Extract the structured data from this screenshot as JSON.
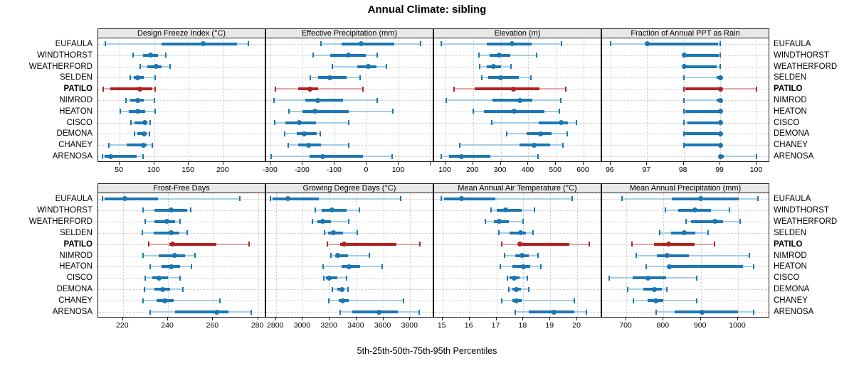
{
  "title": "Annual Climate: sibling",
  "caption": "5th-25th-50th-75th-95th Percentiles",
  "colors": {
    "blue": "#1b77b4",
    "blue_light": "#a5cde3",
    "red": "#b22222",
    "red_light": "#dfaaa4",
    "strip_bg": "#e8e8e8",
    "grid": "#c8c8c8",
    "border": "#1a1a1a"
  },
  "chart_data": {
    "type": "dotplot",
    "title": "Annual Climate: sibling",
    "xlabel": "5th-25th-50th-75th-95th Percentiles",
    "percentiles": [
      5,
      25,
      50,
      75,
      95
    ],
    "legend_position": "none",
    "grid": "dotted",
    "sites": [
      "EUFAULA",
      "WINDTHORST",
      "WEATHERFORD",
      "SELDEN",
      "PATILO",
      "NIMROD",
      "HEATON",
      "CISCO",
      "DEMONA",
      "CHANEY",
      "ARENOSA"
    ],
    "highlight_site": "PATILO",
    "panels": [
      {
        "title": "Design Freeze Index (°C)",
        "xlim": [
          19,
          262
        ],
        "ticks": [
          50,
          100,
          150,
          200
        ],
        "ticks_unlabeled": [],
        "values": [
          [
            29,
            111,
            171,
            220,
            236
          ],
          [
            69,
            84,
            95,
            105,
            117
          ],
          [
            80,
            90,
            103,
            111,
            123
          ],
          [
            65,
            70,
            76,
            85,
            101
          ],
          [
            26,
            36,
            79,
            97,
            101
          ],
          [
            59,
            65,
            76,
            85,
            100
          ],
          [
            51,
            63,
            76,
            87,
            101
          ],
          [
            66,
            72,
            86,
            90,
            94
          ],
          [
            72,
            76,
            85,
            89,
            93
          ],
          [
            34,
            60,
            84,
            89,
            97
          ],
          [
            25,
            28,
            37,
            75,
            84
          ]
        ]
      },
      {
        "title": "Effective Precipitation (mm)",
        "xlim": [
          -314,
          210
        ],
        "ticks": [
          -300,
          -200,
          -100,
          0,
          100
        ],
        "ticks_unlabeled": [
          200
        ],
        "values": [
          [
            -144,
            -78,
            -18,
            85,
            168
          ],
          [
            -168,
            -115,
            -57,
            -4,
            33
          ],
          [
            -107,
            -30,
            5,
            30,
            62
          ],
          [
            -176,
            -152,
            -116,
            -63,
            -22
          ],
          [
            -285,
            -215,
            -178,
            -152,
            -12
          ],
          [
            -289,
            -192,
            -152,
            -74,
            32
          ],
          [
            -242,
            -200,
            -161,
            -56,
            81
          ],
          [
            -287,
            -253,
            -211,
            -159,
            -57
          ],
          [
            -256,
            -218,
            -196,
            -156,
            -146
          ],
          [
            -246,
            -215,
            -183,
            -144,
            -56
          ],
          [
            -298,
            -178,
            -137,
            -11,
            80
          ]
        ]
      },
      {
        "title": "Elevation (m)",
        "xlim": [
          59,
          667
        ],
        "ticks": [
          100,
          200,
          300,
          400,
          500,
          600
        ],
        "ticks_unlabeled": [],
        "values": [
          [
            85,
            250,
            340,
            412,
            520
          ],
          [
            222,
            260,
            295,
            335,
            430
          ],
          [
            224,
            250,
            275,
            300,
            338
          ],
          [
            231,
            255,
            300,
            365,
            410
          ],
          [
            132,
            205,
            347,
            440,
            536
          ],
          [
            104,
            270,
            370,
            414,
            518
          ],
          [
            200,
            240,
            348,
            458,
            513
          ],
          [
            268,
            437,
            518,
            544,
            574
          ],
          [
            321,
            394,
            443,
            484,
            542
          ],
          [
            151,
            368,
            421,
            480,
            525
          ],
          [
            85,
            113,
            158,
            263,
            434
          ]
        ]
      },
      {
        "title": "Fraction of Annual PPT as Rain",
        "xlim": [
          95.77,
          100.36
        ],
        "ticks": [
          96,
          97,
          98,
          99,
          100
        ],
        "ticks_unlabeled": [],
        "values": [
          [
            96,
            97,
            97,
            98.95,
            99
          ],
          [
            98,
            98,
            98.02,
            98.95,
            99
          ],
          [
            98,
            98,
            98.02,
            98.9,
            99
          ],
          [
            98,
            98.9,
            99,
            99,
            99
          ],
          [
            98,
            98.05,
            99,
            99,
            100
          ],
          [
            98,
            98.9,
            99,
            99,
            99
          ],
          [
            98,
            98.05,
            99,
            99,
            99
          ],
          [
            98,
            98.1,
            99,
            99,
            99
          ],
          [
            98,
            98.02,
            99,
            99,
            99
          ],
          [
            98,
            98.02,
            99,
            99,
            99
          ],
          [
            99,
            99,
            99,
            99.1,
            100
          ]
        ]
      },
      {
        "title": "Frost-Free Days",
        "xlim": [
          209,
          283.6
        ],
        "ticks": [
          220,
          240,
          260,
          280
        ],
        "ticks_unlabeled": [],
        "values": [
          [
            211,
            212,
            221,
            235.5,
            272
          ],
          [
            229,
            234,
            241.5,
            248.5,
            250
          ],
          [
            230,
            234,
            239.5,
            243,
            245.5
          ],
          [
            228.5,
            233.5,
            241.5,
            245,
            248.5
          ],
          [
            231.5,
            240.5,
            242,
            261.5,
            276
          ],
          [
            229,
            236,
            243,
            247.5,
            252
          ],
          [
            232,
            237,
            241.5,
            245.5,
            250.5
          ],
          [
            230,
            233,
            236,
            240,
            245.5
          ],
          [
            229.5,
            234,
            237.5,
            241,
            246.5
          ],
          [
            229,
            235,
            238.5,
            242.5,
            263
          ],
          [
            232,
            243,
            261.5,
            267,
            277
          ]
        ]
      },
      {
        "title": "Growing Degree Days (°C)",
        "xlim": [
          2727,
          3979
        ],
        "ticks": [
          2800,
          3000,
          3200,
          3400,
          3600,
          3800
        ],
        "ticks_unlabeled": [],
        "values": [
          [
            2760,
            2775,
            2890,
            3120,
            3730
          ],
          [
            3093,
            3140,
            3220,
            3327,
            3424
          ],
          [
            3070,
            3110,
            3150,
            3211,
            3344
          ],
          [
            3164,
            3190,
            3230,
            3300,
            3406
          ],
          [
            3182,
            3277,
            3310,
            3697,
            3871
          ],
          [
            3211,
            3240,
            3260,
            3335,
            3494
          ],
          [
            3153,
            3290,
            3345,
            3430,
            3590
          ],
          [
            3155,
            3175,
            3195,
            3260,
            3325
          ],
          [
            3220,
            3255,
            3290,
            3310,
            3335
          ],
          [
            3194,
            3270,
            3295,
            3340,
            3750
          ],
          [
            3277,
            3370,
            3570,
            3706,
            3866
          ]
        ]
      },
      {
        "title": "Mean Annual Air Temperature (°C)",
        "xlim": [
          14.69,
          20.92
        ],
        "ticks": [
          15,
          16,
          17,
          18,
          19,
          20
        ],
        "ticks_unlabeled": [],
        "values": [
          [
            14.95,
            15.05,
            15.7,
            16.95,
            19.8
          ],
          [
            16.8,
            17.0,
            17.35,
            17.95,
            18.4
          ],
          [
            16.6,
            16.9,
            17.1,
            17.45,
            18.0
          ],
          [
            17.1,
            17.5,
            17.9,
            18.1,
            18.35
          ],
          [
            17.2,
            17.8,
            17.87,
            19.7,
            20.45
          ],
          [
            17.3,
            17.7,
            17.95,
            18.2,
            18.55
          ],
          [
            17.15,
            17.6,
            18.0,
            18.25,
            18.65
          ],
          [
            17.4,
            17.5,
            17.65,
            17.85,
            18.15
          ],
          [
            17.45,
            17.6,
            17.75,
            17.9,
            18.2
          ],
          [
            17.2,
            17.6,
            17.75,
            17.95,
            19.9
          ],
          [
            17.7,
            18.2,
            19.15,
            19.9,
            20.35
          ]
        ]
      },
      {
        "title": "Mean Annual Precipitation (mm)",
        "xlim": [
          635,
          1086
        ],
        "ticks": [
          700,
          800,
          900,
          1000
        ],
        "ticks_unlabeled": [],
        "values": [
          [
            689,
            823,
            900,
            1001,
            1054
          ],
          [
            806,
            839,
            885,
            928,
            978
          ],
          [
            861,
            874,
            938,
            960,
            1005
          ],
          [
            790,
            820,
            855,
            885,
            920
          ],
          [
            715,
            775,
            813,
            884,
            936
          ],
          [
            727,
            782,
            810,
            868,
            1030
          ],
          [
            753,
            810,
            815,
            1014,
            1043
          ],
          [
            654,
            718,
            758,
            807,
            890
          ],
          [
            703,
            745,
            775,
            795,
            808
          ],
          [
            720,
            757,
            780,
            800,
            890
          ],
          [
            780,
            830,
            903,
            1000,
            1043
          ]
        ]
      }
    ]
  }
}
